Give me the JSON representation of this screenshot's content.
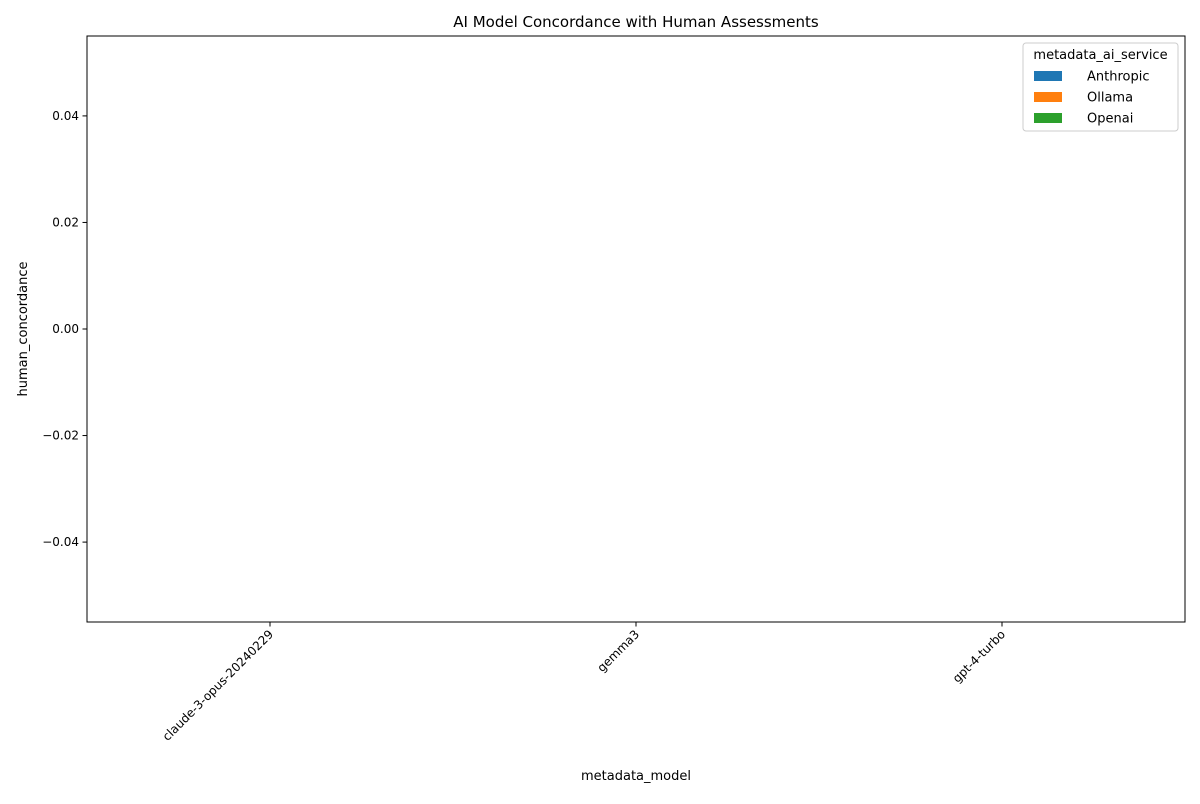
{
  "chart_data": {
    "type": "bar",
    "title": "AI Model Concordance with Human Assessments",
    "xlabel": "metadata_model",
    "ylabel": "human_concordance",
    "categories": [
      "claude-3-opus-20240229",
      "gemma3",
      "gpt-4-turbo"
    ],
    "series": [
      {
        "name": "Anthropic",
        "color": "#1f77b4",
        "values": [
          null,
          null,
          null
        ]
      },
      {
        "name": "Ollama",
        "color": "#ff7f0e",
        "values": [
          null,
          null,
          null
        ]
      },
      {
        "name": "Openai",
        "color": "#2ca02c",
        "values": [
          null,
          null,
          null
        ]
      }
    ],
    "ylim": [
      -0.055,
      0.055
    ],
    "yticks": [
      -0.04,
      -0.02,
      0.0,
      0.02,
      0.04
    ],
    "ytick_labels": [
      "−0.04",
      "−0.02",
      "0.00",
      "0.02",
      "0.04"
    ],
    "grid": false,
    "legend": {
      "title": "metadata_ai_service",
      "placement": "top-right"
    }
  }
}
